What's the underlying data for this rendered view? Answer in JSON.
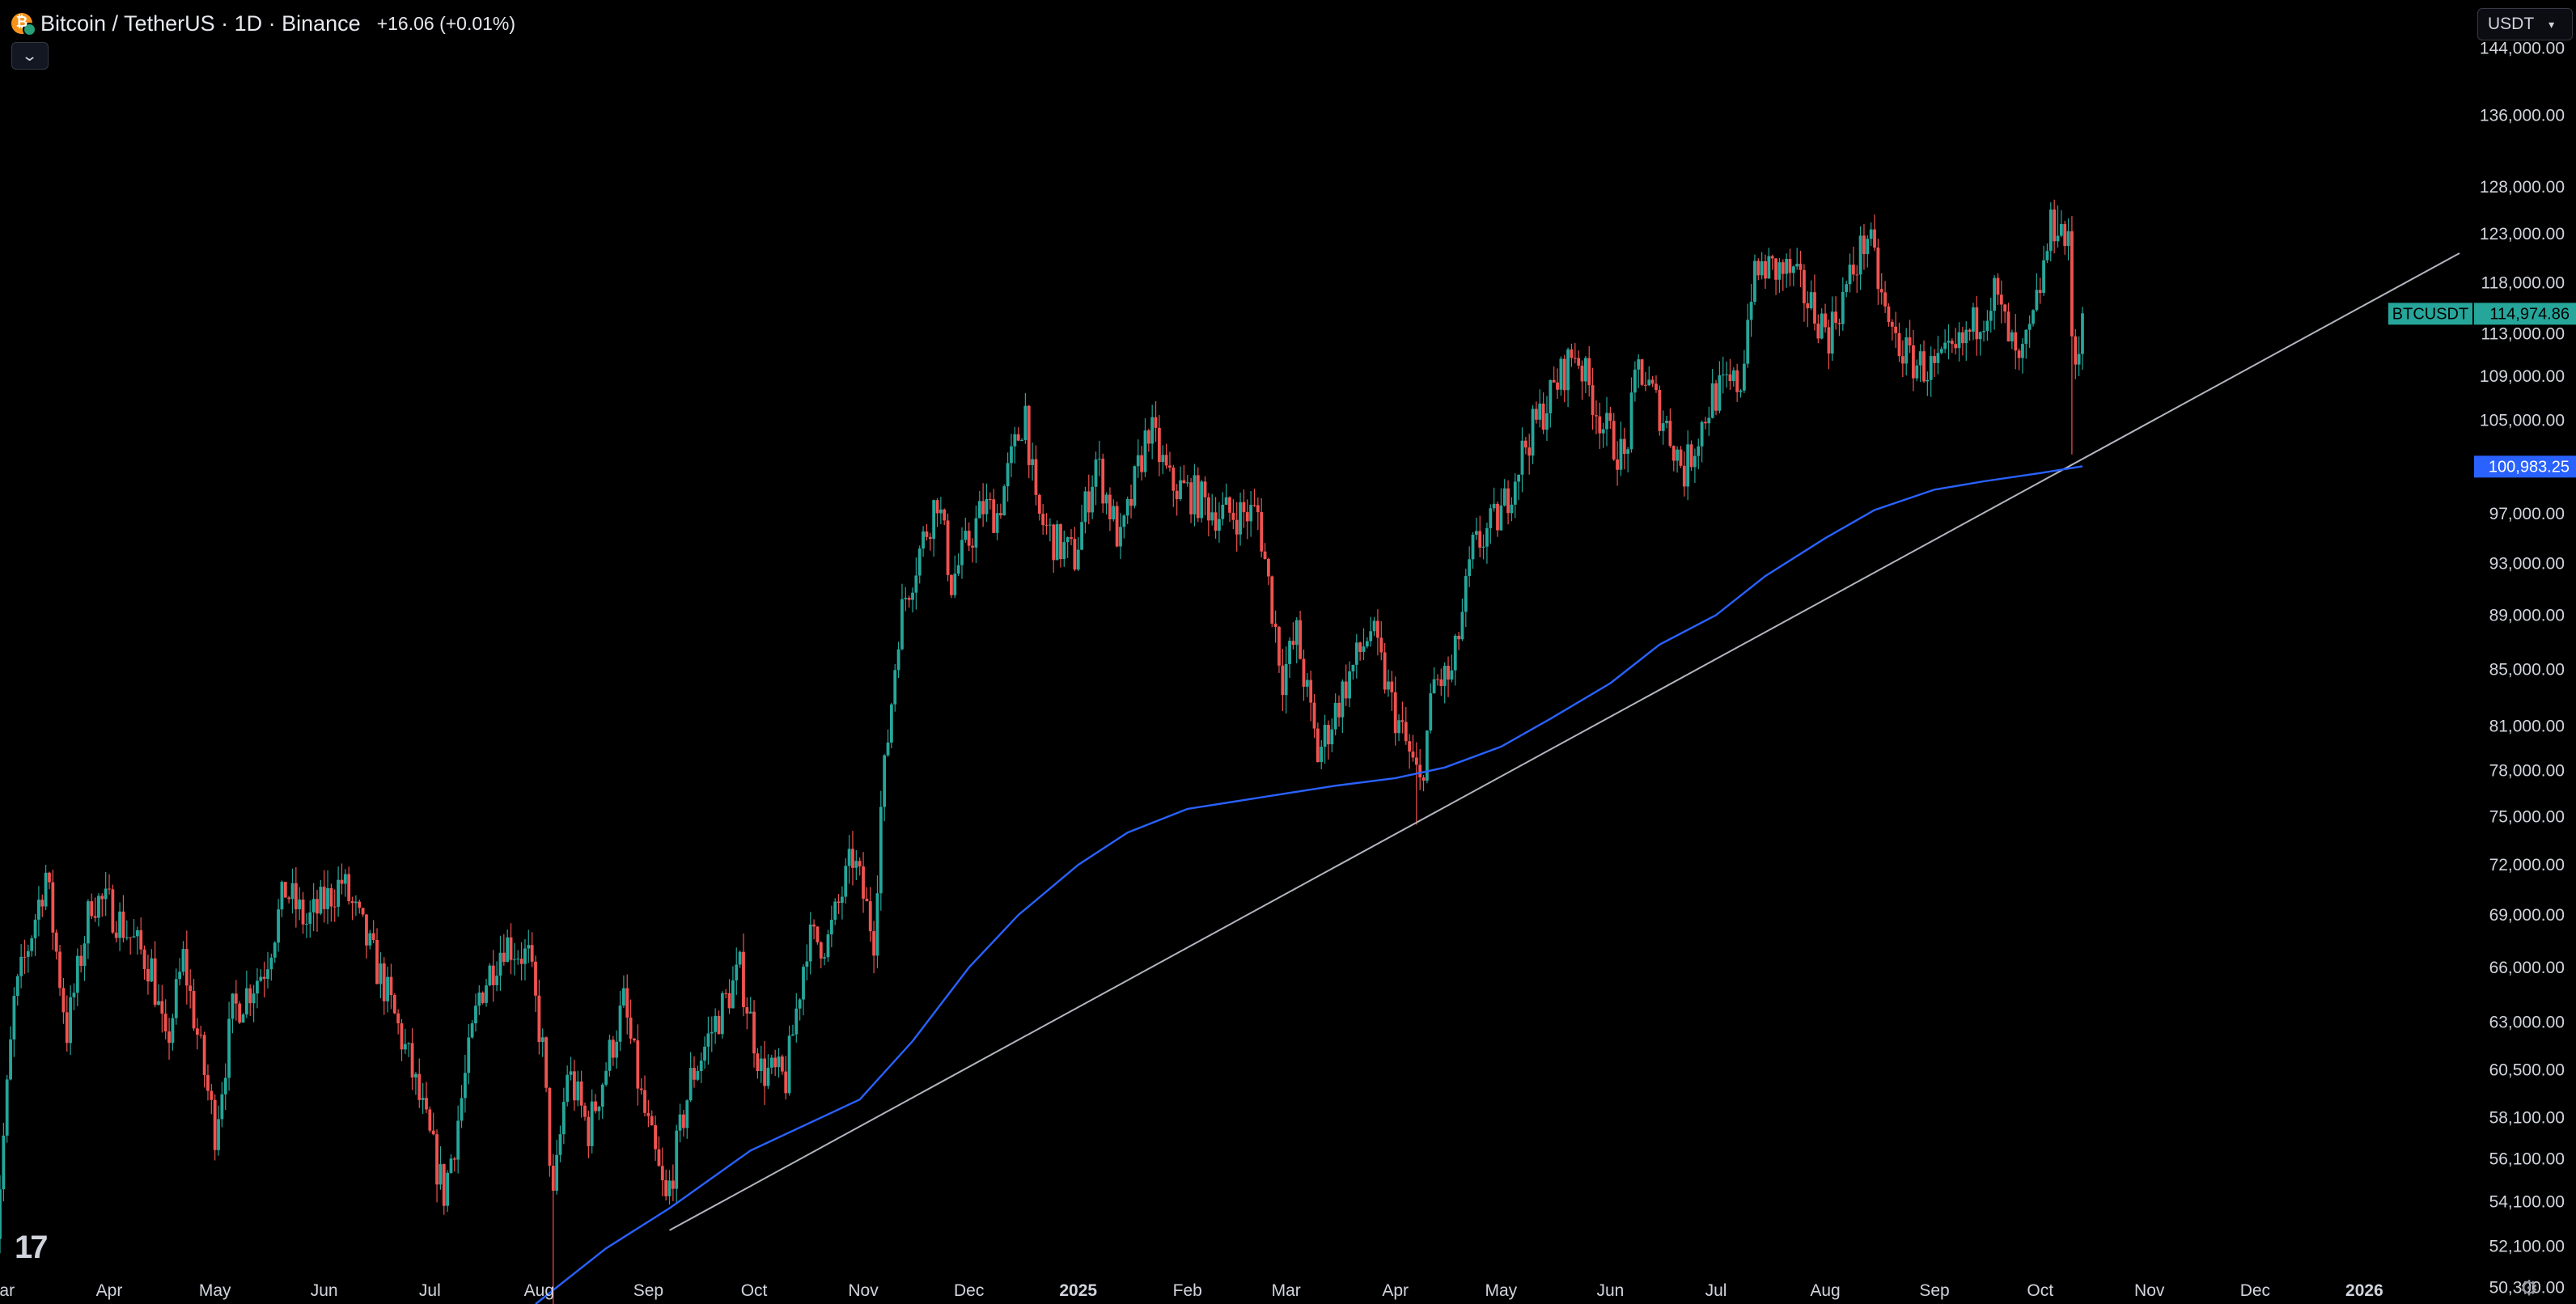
{
  "header": {
    "title": "Bitcoin / TetherUS · 1D · Binance",
    "change": "+16.06 (+0.01%)"
  },
  "currency_selector": {
    "label": "USDT"
  },
  "icons": {
    "coin": "bitcoin-icon",
    "collapse": "chevron-down-icon",
    "logo": "tradingview-logo-icon",
    "settings": "gear-icon"
  },
  "logo_text": "17",
  "colors": {
    "background": "#000000",
    "up": "#26a69a",
    "down": "#ef5350",
    "moving_average": "#2962ff",
    "trendline": "#b2b5be",
    "badge_price": "#26a69a",
    "badge_ma": "#2962ff"
  },
  "chart_data": {
    "type": "candlestick",
    "x_tick_labels": [
      "Mar",
      "Apr",
      "May",
      "Jun",
      "Jul",
      "Aug",
      "Sep",
      "Oct",
      "Nov",
      "Dec",
      "2025",
      "Feb",
      "Mar",
      "Apr",
      "May",
      "Jun",
      "Jul",
      "Aug",
      "Sep",
      "Oct",
      "Nov",
      "Dec",
      "2026"
    ],
    "y_tick_labels": [
      "144,000.00",
      "136,000.00",
      "128,000.00",
      "123,000.00",
      "118,000.00",
      "113,000.00",
      "109,000.00",
      "105,000.00",
      "97,000.00",
      "93,000.00",
      "89,000.00",
      "85,000.00",
      "81,000.00",
      "78,000.00",
      "75,000.00",
      "72,000.00",
      "69,000.00",
      "66,000.00",
      "63,000.00",
      "60,500.00",
      "58,100.00",
      "56,100.00",
      "54,100.00",
      "52,100.00",
      "50,300.00"
    ],
    "y_scale": "log",
    "y_range": [
      49600,
      150000
    ],
    "x_range": [
      "2024-03-01",
      "2026-01-28"
    ],
    "grid": false,
    "price_badge": {
      "label": "BTCUSDT",
      "value": "114,974.86",
      "price": 114974.86
    },
    "ma_badge": {
      "value": "100,983.25",
      "price": 100983.25
    },
    "keypoints": [
      [
        "2024-02-28",
        51000
      ],
      [
        "2024-03-05",
        64000
      ],
      [
        "2024-03-14",
        71500
      ],
      [
        "2024-03-20",
        62500
      ],
      [
        "2024-03-27",
        70000
      ],
      [
        "2024-04-01",
        69500
      ],
      [
        "2024-04-13",
        66000
      ],
      [
        "2024-04-17",
        61500
      ],
      [
        "2024-04-22",
        66500
      ],
      [
        "2024-05-01",
        57500
      ],
      [
        "2024-05-06",
        63500
      ],
      [
        "2024-05-15",
        66000
      ],
      [
        "2024-05-21",
        70500
      ],
      [
        "2024-05-27",
        68500
      ],
      [
        "2024-06-06",
        71000
      ],
      [
        "2024-06-12",
        68000
      ],
      [
        "2024-06-18",
        65000
      ],
      [
        "2024-06-25",
        61000
      ],
      [
        "2024-07-05",
        54500
      ],
      [
        "2024-07-08",
        57000
      ],
      [
        "2024-07-15",
        64500
      ],
      [
        "2024-07-22",
        67500
      ],
      [
        "2024-07-29",
        66500
      ],
      [
        "2024-08-02",
        61500
      ],
      [
        "2024-08-05",
        54000
      ],
      [
        "2024-08-09",
        60500
      ],
      [
        "2024-08-15",
        57500
      ],
      [
        "2024-08-25",
        64000
      ],
      [
        "2024-08-30",
        59000
      ],
      [
        "2024-09-06",
        54000
      ],
      [
        "2024-09-13",
        60000
      ],
      [
        "2024-09-20",
        63000
      ],
      [
        "2024-09-27",
        65800
      ],
      [
        "2024-10-03",
        60500
      ],
      [
        "2024-10-10",
        60000
      ],
      [
        "2024-10-16",
        67500
      ],
      [
        "2024-10-22",
        67500
      ],
      [
        "2024-10-29",
        72500
      ],
      [
        "2024-11-04",
        67800
      ],
      [
        "2024-11-06",
        75500
      ],
      [
        "2024-11-11",
        88000
      ],
      [
        "2024-11-13",
        90500
      ],
      [
        "2024-11-22",
        98500
      ],
      [
        "2024-11-26",
        91500
      ],
      [
        "2024-12-05",
        97500
      ],
      [
        "2024-12-09",
        97000
      ],
      [
        "2024-12-17",
        106000
      ],
      [
        "2024-12-20",
        97000
      ],
      [
        "2024-12-26",
        94500
      ],
      [
        "2024-12-31",
        93500
      ],
      [
        "2025-01-06",
        101500
      ],
      [
        "2025-01-13",
        94500
      ],
      [
        "2025-01-21",
        104500
      ],
      [
        "2025-01-27",
        99500
      ],
      [
        "2025-02-03",
        98500
      ],
      [
        "2025-02-10",
        97000
      ],
      [
        "2025-02-21",
        97000
      ],
      [
        "2025-02-28",
        84500
      ],
      [
        "2025-03-04",
        87500
      ],
      [
        "2025-03-10",
        79000
      ],
      [
        "2025-03-18",
        84000
      ],
      [
        "2025-03-25",
        88000
      ],
      [
        "2025-03-31",
        82500
      ],
      [
        "2025-04-08",
        77000
      ],
      [
        "2025-04-12",
        84000
      ],
      [
        "2025-04-17",
        84500
      ],
      [
        "2025-04-23",
        94000
      ],
      [
        "2025-05-01",
        97000
      ],
      [
        "2025-05-08",
        103000
      ],
      [
        "2025-05-22",
        111500
      ],
      [
        "2025-05-30",
        104500
      ],
      [
        "2025-06-05",
        101500
      ],
      [
        "2025-06-09",
        110000
      ],
      [
        "2025-06-17",
        104500
      ],
      [
        "2025-06-22",
        100500
      ],
      [
        "2025-06-30",
        107200
      ],
      [
        "2025-07-08",
        108500
      ],
      [
        "2025-07-11",
        117500
      ],
      [
        "2025-07-14",
        119500
      ],
      [
        "2025-07-22",
        119000
      ],
      [
        "2025-08-02",
        113000
      ],
      [
        "2025-08-13",
        123000
      ],
      [
        "2025-08-19",
        113500
      ],
      [
        "2025-08-25",
        110500
      ],
      [
        "2025-09-01",
        109500
      ],
      [
        "2025-09-07",
        111000
      ],
      [
        "2025-09-18",
        117000
      ],
      [
        "2025-09-25",
        109500
      ],
      [
        "2025-09-29",
        114000
      ],
      [
        "2025-10-04",
        123500
      ],
      [
        "2025-10-06",
        124500
      ],
      [
        "2025-10-09",
        121500
      ],
      [
        "2025-10-10",
        113000
      ],
      [
        "2025-10-11",
        110500
      ],
      [
        "2025-10-13",
        114974.86
      ]
    ],
    "wick_extremes": [
      [
        "2024-08-05",
        49100
      ],
      [
        "2025-04-07",
        74500
      ],
      [
        "2025-10-10",
        102000
      ],
      [
        "2025-10-06",
        126000
      ]
    ],
    "moving_average": [
      [
        "2024-07-31",
        49600
      ],
      [
        "2024-08-20",
        52000
      ],
      [
        "2024-09-07",
        53800
      ],
      [
        "2024-09-30",
        56500
      ],
      [
        "2024-10-31",
        59000
      ],
      [
        "2024-11-15",
        62000
      ],
      [
        "2024-12-01",
        66000
      ],
      [
        "2024-12-15",
        69000
      ],
      [
        "2025-01-01",
        72000
      ],
      [
        "2025-01-15",
        74000
      ],
      [
        "2025-02-01",
        75500
      ],
      [
        "2025-02-15",
        76000
      ],
      [
        "2025-03-01",
        76500
      ],
      [
        "2025-03-15",
        77000
      ],
      [
        "2025-04-01",
        77500
      ],
      [
        "2025-04-15",
        78200
      ],
      [
        "2025-05-01",
        79600
      ],
      [
        "2025-05-15",
        81500
      ],
      [
        "2025-06-01",
        84000
      ],
      [
        "2025-06-15",
        86800
      ],
      [
        "2025-07-01",
        89000
      ],
      [
        "2025-07-15",
        92000
      ],
      [
        "2025-08-01",
        95000
      ],
      [
        "2025-08-15",
        97300
      ],
      [
        "2025-09-01",
        99000
      ],
      [
        "2025-09-15",
        99700
      ],
      [
        "2025-10-01",
        100400
      ],
      [
        "2025-10-13",
        100983.25
      ]
    ],
    "trendline": [
      [
        "2024-09-07",
        52800
      ],
      [
        "2026-01-28",
        121000
      ]
    ]
  }
}
